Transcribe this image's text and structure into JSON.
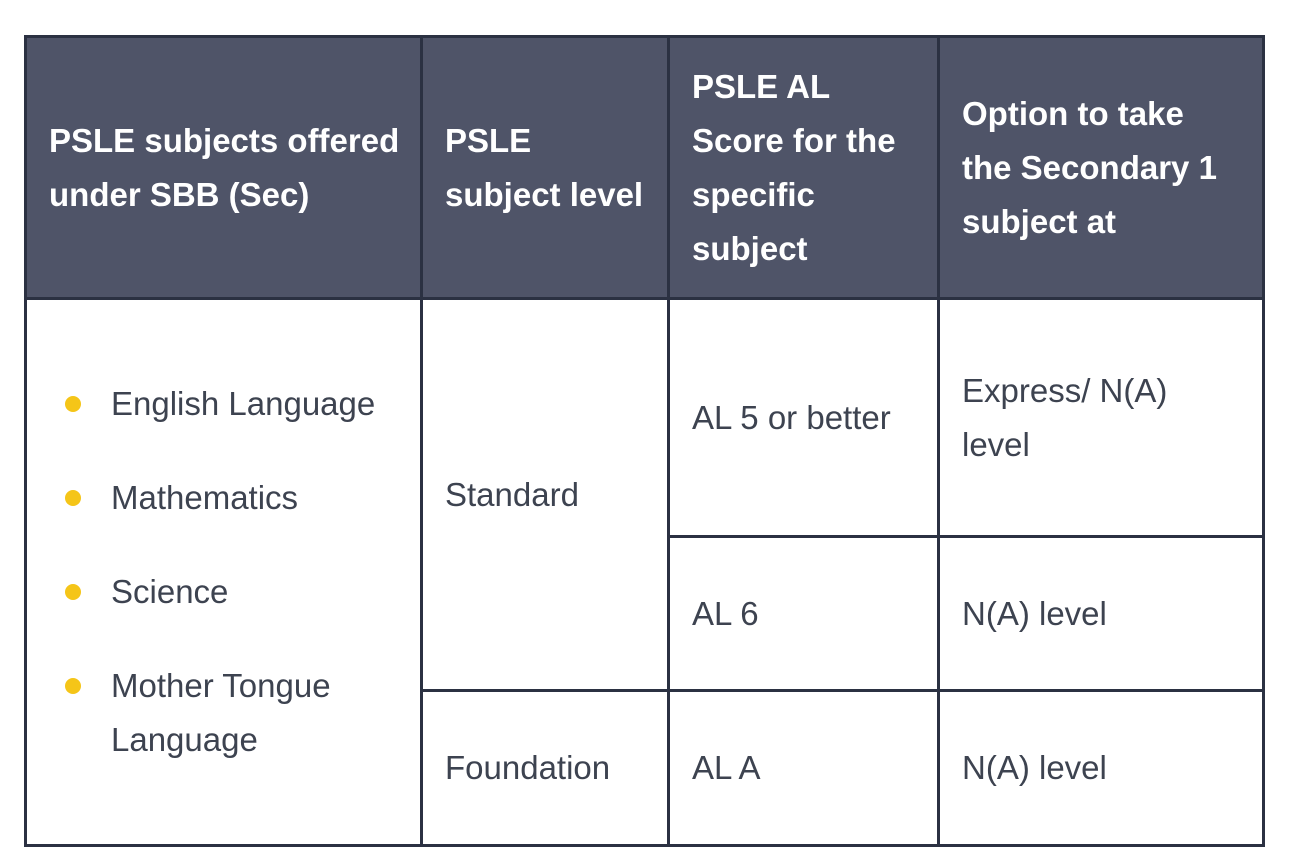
{
  "colors": {
    "header_background": "#4f5468",
    "header_text": "#ffffff",
    "border": "#2b3142",
    "body_text": "#3d4350",
    "bullet": "#f5c518"
  },
  "table": {
    "headers": [
      "PSLE subjects offered under SBB (Sec)",
      "PSLE subject level",
      "PSLE AL Score for the specific subject",
      "Option to take the Secondary 1 subject at"
    ],
    "subjects": [
      "English Language",
      "Mathematics",
      "Science",
      "Mother Tongue Language"
    ],
    "rows": [
      {
        "level": "Standard",
        "al_score": "AL 5 or better",
        "option": "Express/ N(A) level"
      },
      {
        "al_score": "AL 6",
        "option": "N(A) level"
      },
      {
        "level": "Foundation",
        "al_score": "AL A",
        "option": "N(A) level"
      }
    ]
  }
}
